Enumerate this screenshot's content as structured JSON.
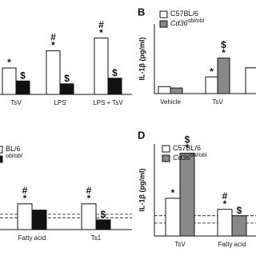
{
  "chart_data": [
    {
      "type": "bar",
      "categories": [
        "TsV",
        "LPS",
        "LPS + TsV"
      ],
      "ylim": [
        0,
        100
      ],
      "series": [
        {
          "name": null,
          "color": "#ffffff",
          "values": [
            37.5,
            62,
            80
          ],
          "annotations": [
            [
              "*"
            ],
            [
              "#",
              "*"
            ],
            [
              "#",
              "*"
            ]
          ]
        },
        {
          "name": null,
          "color": "#111111",
          "values": [
            19,
            15,
            23
          ],
          "annotations": [
            [
              "$"
            ],
            [
              "$"
            ],
            [
              "$"
            ]
          ]
        }
      ]
    },
    {
      "type": "bar",
      "panel_label": "B",
      "y_label": "IL-1β (pg/ml)",
      "categories": [
        "Vehicle",
        "TsV",
        null
      ],
      "ylim": [
        0,
        100
      ],
      "series": [
        {
          "name": "C57BL/6",
          "color": "#ffffff",
          "values": [
            10,
            24,
            37
          ],
          "annotations": [
            null,
            [
              "*"
            ],
            null
          ]
        },
        {
          "name": "Cd36",
          "superscript": "obl/obl",
          "color": "#888888",
          "values": [
            8,
            51,
            null
          ],
          "annotations": [
            null,
            [
              "$",
              "*"
            ],
            null
          ]
        }
      ]
    },
    {
      "type": "bar",
      "categories": [
        null,
        "Fatty acid",
        "Ts1"
      ],
      "ylim": [
        0,
        100
      ],
      "reference_lines": [
        22,
        17
      ],
      "series": [
        {
          "name": "BL/6",
          "color": "#ffffff",
          "values": [
            23,
            37,
            37
          ],
          "annotations": [
            null,
            [
              "#",
              "*"
            ],
            [
              "#",
              "*"
            ]
          ]
        },
        {
          "name": "",
          "superscript": "obl/obl",
          "color": "#111111",
          "values": [
            null,
            28,
            14
          ],
          "annotations": [
            null,
            null,
            [
              "$"
            ]
          ]
        }
      ]
    },
    {
      "type": "bar",
      "panel_label": "D",
      "y_label": "IL-1β (pg/ml)",
      "categories": [
        "TsV",
        "Fatty acid"
      ],
      "ylim": [
        0,
        100
      ],
      "reference_lines": [
        22,
        14
      ],
      "series": [
        {
          "name": "C57BL/6",
          "color": "#ffffff",
          "values": [
            41,
            29
          ],
          "annotations": [
            [
              "*"
            ],
            [
              "#",
              "*"
            ]
          ]
        },
        {
          "name": "Cd36",
          "superscript": "obl/obl",
          "color": "#888888",
          "values": [
            90,
            22
          ],
          "annotations": [
            [
              "$",
              "*"
            ],
            [
              "$"
            ]
          ]
        }
      ]
    }
  ]
}
